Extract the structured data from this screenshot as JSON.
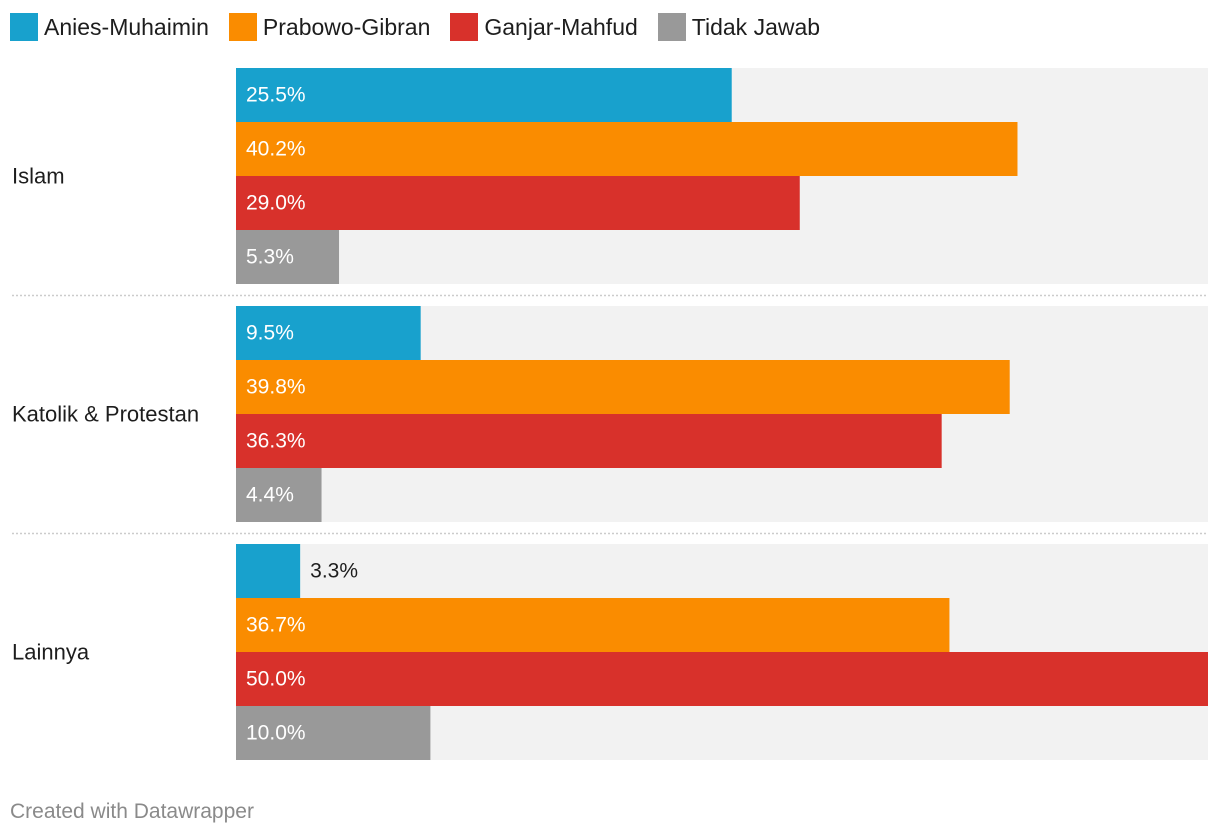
{
  "chart_data": {
    "type": "bar",
    "orientation": "horizontal",
    "categories": [
      "Islam",
      "Katolik & Protestan",
      "Lainnya"
    ],
    "series": [
      {
        "name": "Anies-Muhaimin",
        "color": "#18a1cd",
        "values": [
          25.5,
          9.5,
          3.3
        ],
        "labels": [
          "25.5%",
          "9.5%",
          "3.3%"
        ]
      },
      {
        "name": "Prabowo-Gibran",
        "color": "#fa8c00",
        "values": [
          40.2,
          39.8,
          36.7
        ],
        "labels": [
          "40.2%",
          "39.8%",
          "36.7%"
        ]
      },
      {
        "name": "Ganjar-Mahfud",
        "color": "#d8312b",
        "values": [
          29.0,
          36.3,
          50.0
        ],
        "labels": [
          "29.0%",
          "36.3%",
          "50.0%"
        ]
      },
      {
        "name": "Tidak Jawab",
        "color": "#999999",
        "values": [
          5.3,
          4.4,
          10.0
        ],
        "labels": [
          "5.3%",
          "4.4%",
          "10.0%"
        ]
      }
    ],
    "xlim": [
      0,
      50
    ],
    "legend_position": "top",
    "background_bar_color": "#f2f2f2",
    "title": "",
    "xlabel": "",
    "ylabel": ""
  },
  "footer": {
    "credit": "Created with Datawrapper"
  }
}
